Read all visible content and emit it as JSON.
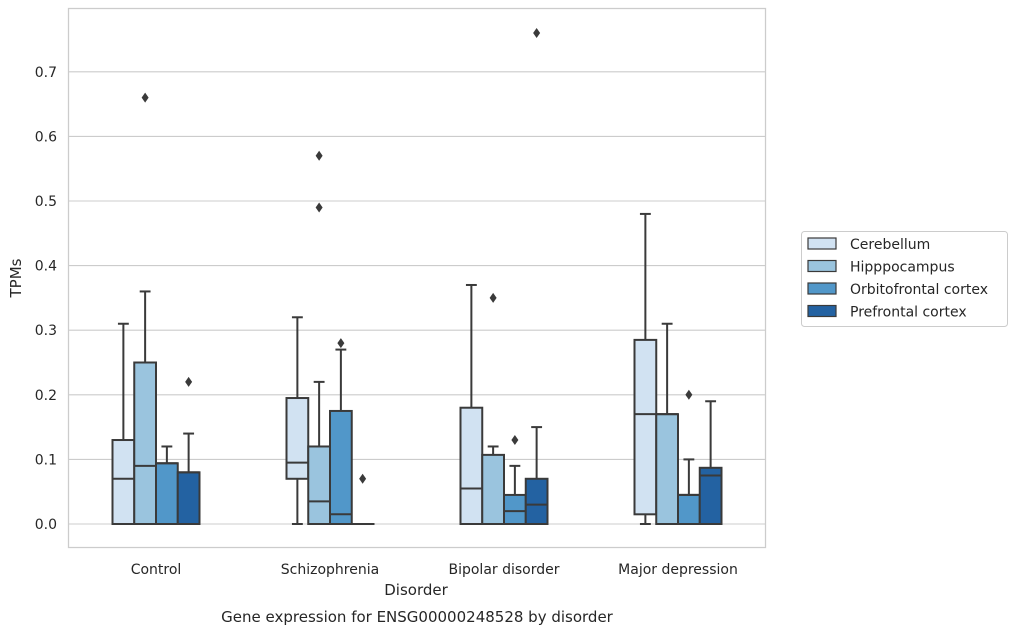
{
  "chart_data": {
    "type": "box",
    "xlabel": "Disorder",
    "ylabel": "TPMs",
    "caption": "Gene expression for ENSG00000248528 by disorder",
    "categories": [
      "Control",
      "Schizophrenia",
      "Bipolar disorder",
      "Major depression"
    ],
    "ylim": [
      -0.037,
      0.798
    ],
    "yticks": [
      "0.0",
      "0.1",
      "0.2",
      "0.3",
      "0.4",
      "0.5",
      "0.6",
      "0.7"
    ],
    "grid": "horizontal",
    "legend_position": "right",
    "series": [
      {
        "name": "Cerebellum",
        "color": "#d1e2f2",
        "boxes": [
          {
            "q1": 0.0,
            "median": 0.07,
            "q3": 0.13,
            "whislo": 0.0,
            "whishi": 0.31,
            "fliers": []
          },
          {
            "q1": 0.07,
            "median": 0.095,
            "q3": 0.195,
            "whislo": 0.0,
            "whishi": 0.32,
            "fliers": []
          },
          {
            "q1": 0.0,
            "median": 0.055,
            "q3": 0.18,
            "whislo": 0.0,
            "whishi": 0.37,
            "fliers": []
          },
          {
            "q1": 0.015,
            "median": 0.17,
            "q3": 0.285,
            "whislo": 0.0,
            "whishi": 0.48,
            "fliers": []
          }
        ]
      },
      {
        "name": "Hipppocampus",
        "color": "#9ac4de",
        "boxes": [
          {
            "q1": 0.0,
            "median": 0.09,
            "q3": 0.25,
            "whislo": 0.0,
            "whishi": 0.36,
            "fliers": [
              0.66
            ]
          },
          {
            "q1": 0.0,
            "median": 0.035,
            "q3": 0.12,
            "whislo": 0.0,
            "whishi": 0.22,
            "fliers": [
              0.49,
              0.57
            ]
          },
          {
            "q1": 0.0,
            "median": 0.0,
            "q3": 0.107,
            "whislo": 0.0,
            "whishi": 0.12,
            "fliers": [
              0.35
            ]
          },
          {
            "q1": 0.0,
            "median": 0.17,
            "q3": 0.17,
            "whislo": 0.0,
            "whishi": 0.31,
            "fliers": []
          }
        ]
      },
      {
        "name": "Orbitofrontal cortex",
        "color": "#5197c9",
        "boxes": [
          {
            "q1": 0.0,
            "median": 0.094,
            "q3": 0.094,
            "whislo": 0.0,
            "whishi": 0.12,
            "fliers": []
          },
          {
            "q1": 0.0,
            "median": 0.015,
            "q3": 0.175,
            "whislo": 0.0,
            "whishi": 0.27,
            "fliers": [
              0.28
            ]
          },
          {
            "q1": 0.0,
            "median": 0.02,
            "q3": 0.045,
            "whislo": 0.0,
            "whishi": 0.09,
            "fliers": [
              0.13
            ]
          },
          {
            "q1": 0.0,
            "median": 0.045,
            "q3": 0.045,
            "whislo": 0.0,
            "whishi": 0.1,
            "fliers": [
              0.2
            ]
          }
        ]
      },
      {
        "name": "Prefrontal cortex",
        "color": "#2362a2",
        "boxes": [
          {
            "q1": 0.0,
            "median": 0.08,
            "q3": 0.08,
            "whislo": 0.0,
            "whishi": 0.14,
            "fliers": [
              0.22
            ]
          },
          {
            "q1": 0.0,
            "median": 0.0,
            "q3": 0.0,
            "whislo": 0.0,
            "whishi": 0.0,
            "fliers": [
              0.07
            ]
          },
          {
            "q1": 0.0,
            "median": 0.03,
            "q3": 0.07,
            "whislo": 0.0,
            "whishi": 0.15,
            "fliers": [
              0.76
            ]
          },
          {
            "q1": 0.0,
            "median": 0.075,
            "q3": 0.087,
            "whislo": 0.0,
            "whishi": 0.19,
            "fliers": []
          }
        ]
      }
    ]
  },
  "colors": {
    "edge": "#3a3a3a",
    "grid": "#cccccc",
    "frame": "#cccccc",
    "text": "#262626"
  }
}
